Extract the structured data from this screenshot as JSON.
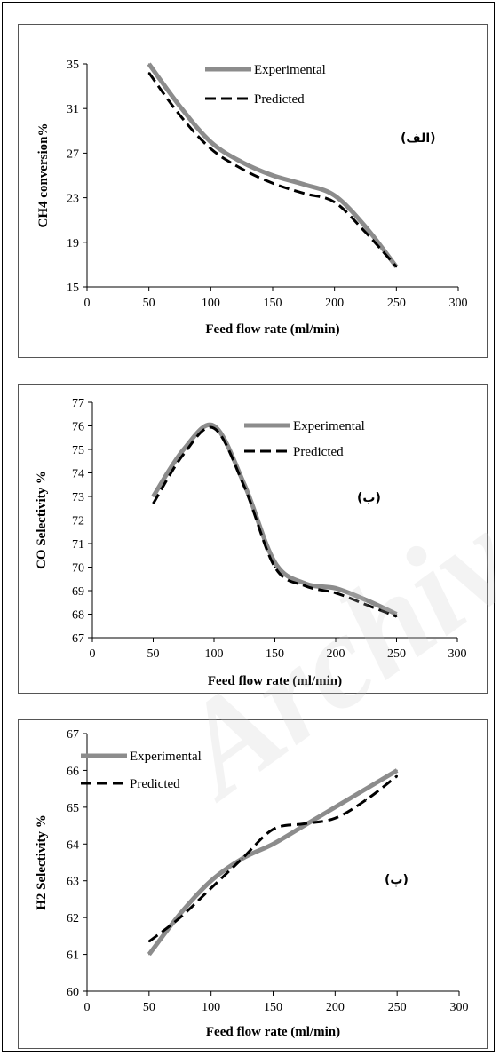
{
  "colors": {
    "experimental": "#8c8c8c",
    "predicted": "#000000",
    "axis": "#000000"
  },
  "watermark": "Archive",
  "chart_data": [
    {
      "type": "line",
      "annotation": "(الف)",
      "xlabel": "Feed flow rate (ml/min)",
      "ylabel": "CH4 conversion%",
      "xlim": [
        0,
        300
      ],
      "ylim": [
        15,
        35
      ],
      "xticks": [
        0,
        50,
        100,
        150,
        200,
        250,
        300
      ],
      "yticks": [
        15,
        19,
        23,
        27,
        31,
        35
      ],
      "x": [
        50,
        75,
        100,
        125,
        150,
        175,
        200,
        225,
        250
      ],
      "series": [
        {
          "name": "Experimental",
          "style": "solid",
          "values": [
            35.0,
            31.2,
            28.0,
            26.2,
            25.0,
            24.2,
            23.2,
            20.4,
            16.8
          ]
        },
        {
          "name": "Predicted",
          "style": "dashed",
          "values": [
            34.2,
            30.4,
            27.4,
            25.6,
            24.3,
            23.4,
            22.6,
            19.9,
            16.8
          ]
        }
      ],
      "legend": "top-right"
    },
    {
      "type": "line",
      "annotation": "(ب)",
      "xlabel": "Feed flow rate (ml/min)",
      "ylabel": "CO Selectivity %",
      "xlim": [
        0,
        300
      ],
      "ylim": [
        67,
        77
      ],
      "xticks": [
        0,
        50,
        100,
        150,
        200,
        250,
        300
      ],
      "yticks": [
        67,
        68,
        69,
        70,
        71,
        72,
        73,
        74,
        75,
        76,
        77
      ],
      "x": [
        50,
        75,
        100,
        125,
        150,
        175,
        200,
        225,
        250
      ],
      "series": [
        {
          "name": "Experimental",
          "style": "solid",
          "values": [
            73.0,
            75.0,
            76.0,
            73.5,
            70.2,
            69.3,
            69.1,
            68.6,
            68.0
          ]
        },
        {
          "name": "Predicted",
          "style": "dashed",
          "values": [
            72.7,
            74.8,
            75.9,
            73.4,
            70.0,
            69.2,
            68.9,
            68.4,
            67.9
          ]
        }
      ],
      "legend": "top-right"
    },
    {
      "type": "line",
      "annotation": "(پ)",
      "xlabel": "Feed flow rate (ml/min)",
      "ylabel": "H2 Selectivity %",
      "xlim": [
        0,
        300
      ],
      "ylim": [
        60,
        67
      ],
      "xticks": [
        0,
        50,
        100,
        150,
        200,
        250,
        300
      ],
      "yticks": [
        60,
        61,
        62,
        63,
        64,
        65,
        66,
        67
      ],
      "x": [
        50,
        75,
        100,
        125,
        150,
        175,
        200,
        225,
        250
      ],
      "series": [
        {
          "name": "Experimental",
          "style": "solid",
          "values": [
            61.0,
            62.1,
            63.0,
            63.6,
            64.0,
            64.5,
            65.0,
            65.5,
            66.0
          ]
        },
        {
          "name": "Predicted",
          "style": "dashed",
          "values": [
            61.35,
            62.0,
            62.8,
            63.6,
            64.4,
            64.55,
            64.7,
            65.2,
            65.85
          ]
        }
      ],
      "legend": "top-left"
    }
  ]
}
